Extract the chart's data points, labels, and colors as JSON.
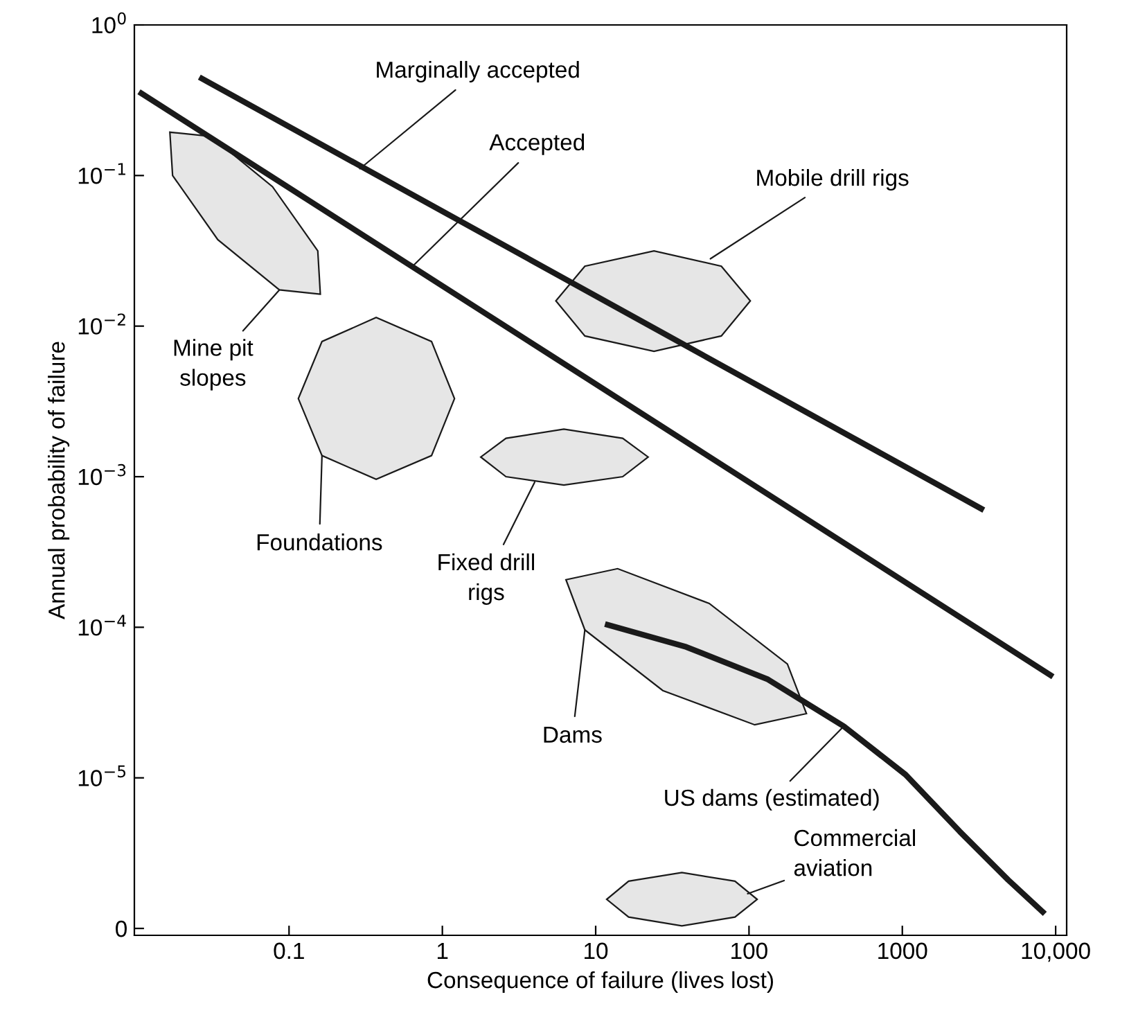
{
  "chart_data": {
    "type": "line",
    "xlabel": "Consequence of failure (lives lost)",
    "ylabel": "Annual probability of failure",
    "log": "xy",
    "xlim": [
      0.0098,
      11800
    ],
    "ylim": [
      9e-07,
      1
    ],
    "xticks": [
      0.1,
      1,
      10,
      100,
      1000,
      {
        "value": 10000,
        "label": "10,000"
      }
    ],
    "yticks": [
      {
        "value": 1,
        "label": "10$^{0}$"
      },
      {
        "value": 0.1,
        "label": "10$^{−1}$"
      },
      {
        "value": 0.01,
        "label": "10$^{−2}$"
      },
      {
        "value": 0.001,
        "label": "10$^{−3}$"
      },
      {
        "value": 0.0001,
        "label": "10$^{−4}$"
      },
      {
        "value": 1e-05,
        "label": "10$^{−5}$"
      },
      {
        "value": 1e-06,
        "label": "0"
      }
    ],
    "grid": false,
    "legend": false,
    "series": [
      {
        "type": "area",
        "color": "#e6e6e6",
        "x": [
          0.16,
          0.0865,
          0.0343,
          0.0174,
          0.0167,
          0.031,
          0.078,
          0.154
        ],
        "values": [
          0.0163,
          0.0174,
          0.0375,
          0.1,
          0.194,
          0.182,
          0.0843,
          0.0316
        ]
      },
      {
        "type": "area",
        "color": "#e6e6e6",
        "x": [
          1.2,
          0.85,
          0.37,
          0.164,
          0.115,
          0.164,
          0.37,
          0.85
        ],
        "values": [
          0.0033,
          0.00138,
          0.00096,
          0.00138,
          0.0033,
          0.0079,
          0.0114,
          0.0079
        ]
      },
      {
        "type": "area",
        "color": "#e6e6e6",
        "x": [
          22,
          15,
          6.2,
          2.6,
          1.78,
          2.6,
          6.2,
          15
        ],
        "values": [
          0.00135,
          0.001,
          0.00088,
          0.001,
          0.00135,
          0.0018,
          0.00207,
          0.0018
        ]
      },
      {
        "type": "area",
        "color": "#e6e6e6",
        "x": [
          102,
          66,
          24,
          8.5,
          5.5,
          8.5,
          24,
          66
        ],
        "values": [
          0.0147,
          0.0086,
          0.0068,
          0.0086,
          0.0147,
          0.025,
          0.0316,
          0.025
        ]
      },
      {
        "type": "area",
        "color": "#e6e6e6",
        "x": [
          237,
          109,
          27.4,
          8.5,
          6.4,
          13.9,
          55,
          178
        ],
        "values": [
          2.67e-05,
          2.25e-05,
          3.8e-05,
          9.6e-05,
          0.000207,
          0.000245,
          0.000144,
          5.7e-05
        ]
      },
      {
        "type": "area",
        "color": "#e6e6e6",
        "x": [
          113,
          81,
          36.5,
          16.4,
          11.8,
          16.4,
          36.5,
          81
        ],
        "values": [
          1.56e-06,
          1.19e-06,
          1.04e-06,
          1.19e-06,
          1.56e-06,
          2.06e-06,
          2.35e-06,
          2.06e-06
        ]
      },
      {
        "color": "#1a1a1a",
        "x": [
          0.026,
          3400
        ],
        "values": [
          0.45,
          0.0006
        ]
      },
      {
        "color": "#1a1a1a",
        "x": [
          0.0105,
          9600
        ],
        "values": [
          0.36,
          4.7e-05
        ]
      },
      {
        "color": "#1a1a1a",
        "x": [
          11.5,
          39,
          133,
          415,
          1050,
          2370,
          4900,
          8500
        ],
        "values": [
          0.000105,
          7.4e-05,
          4.5e-05,
          2.2e-05,
          1.05e-05,
          4.4e-06,
          2.1e-06,
          1.25e-06
        ]
      }
    ],
    "annotations": [
      {
        "text": "Marginally accepted",
        "x": 0.29,
        "y": 0.111
      },
      {
        "text": "Accepted",
        "x": 0.64,
        "y": 0.025
      },
      {
        "text": "Mobile drill rigs",
        "x": 56,
        "y": 0.028
      },
      {
        "text": "Mine pit\nslopes",
        "x": 0.0865,
        "y": 0.0174
      },
      {
        "text": "Foundations",
        "x": 0.164,
        "y": 0.00138
      },
      {
        "text": "Fixed drill\nrigs",
        "x": 4.0,
        "y": 0.00092
      },
      {
        "text": "Dams",
        "x": 8.5,
        "y": 9.6e-05
      },
      {
        "text": "US dams (estimated)",
        "x": 415,
        "y": 2.2e-05
      },
      {
        "text": "Commercial\naviation",
        "x": 98,
        "y": 1.7e-06
      }
    ]
  }
}
